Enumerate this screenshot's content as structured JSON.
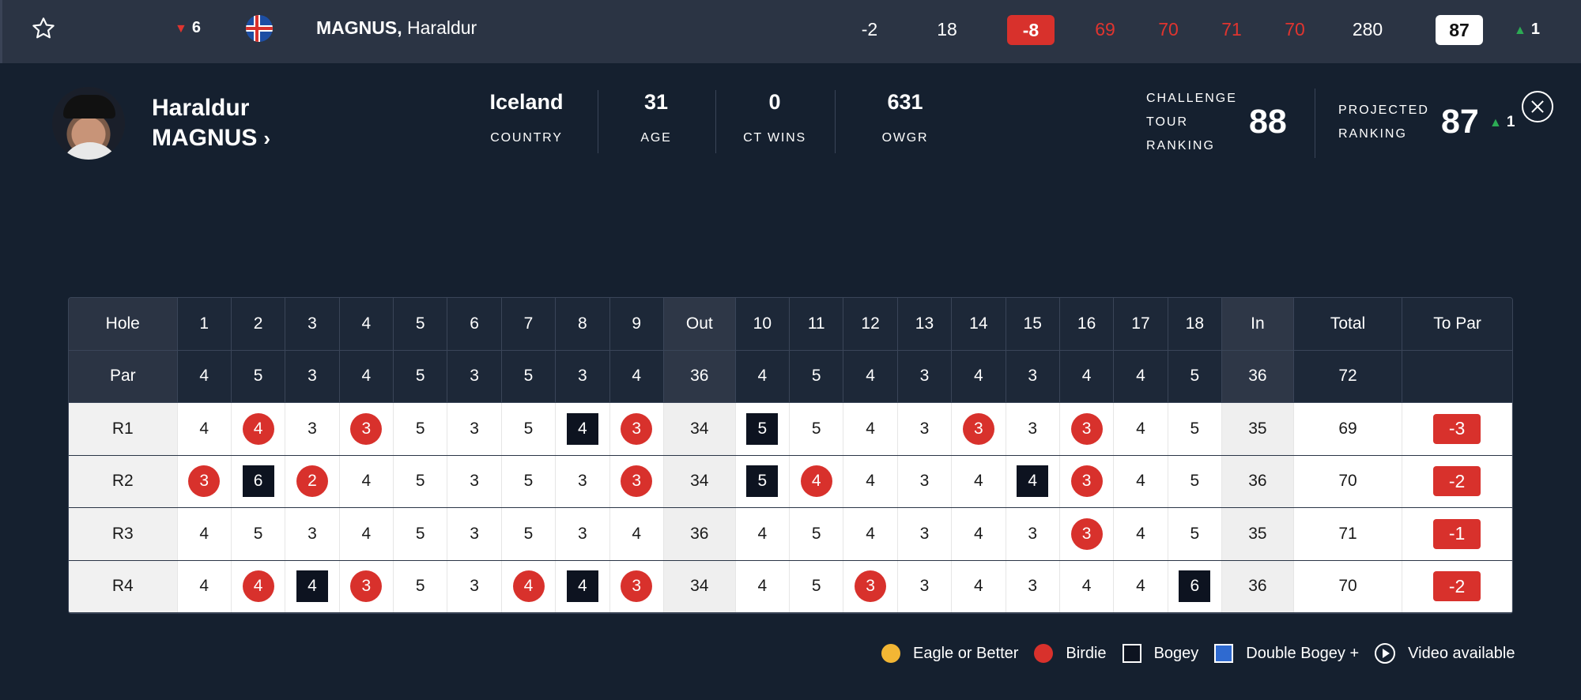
{
  "top_row": {
    "position_change": "6",
    "last_name": "MAGNUS,",
    "first_name": "Haraldur",
    "cells": [
      {
        "label": "-2",
        "red": false
      },
      {
        "label": "18",
        "red": false
      }
    ],
    "position": "-8",
    "rounds": [
      "69",
      "70",
      "71",
      "70"
    ],
    "total": "280",
    "projected": "87",
    "projected_change": "1"
  },
  "profile": {
    "first_name": "Haraldur",
    "last_name": "MAGNUS",
    "country": "Iceland",
    "country_label": "COUNTRY",
    "age": "31",
    "age_label": "AGE",
    "ct_wins": "0",
    "ct_wins_label": "CT WINS",
    "owgr": "631",
    "owgr_label": "OWGR",
    "ranking_label_1": "CHALLENGE",
    "ranking_label_2": "TOUR",
    "ranking_label_3": "RANKING",
    "ranking_value": "88",
    "projected_label_1": "PROJECTED",
    "projected_label_2": "RANKING",
    "projected_value": "87",
    "projected_change": "1"
  },
  "scorecard": {
    "hole_label": "Hole",
    "par_label": "Par",
    "holes": [
      "1",
      "2",
      "3",
      "4",
      "5",
      "6",
      "7",
      "8",
      "9",
      "Out",
      "10",
      "11",
      "12",
      "13",
      "14",
      "15",
      "16",
      "17",
      "18",
      "In",
      "Total",
      "To Par"
    ],
    "par": [
      "4",
      "5",
      "3",
      "4",
      "5",
      "3",
      "5",
      "3",
      "4",
      "36",
      "4",
      "5",
      "4",
      "3",
      "4",
      "3",
      "4",
      "4",
      "5",
      "36",
      "72",
      ""
    ],
    "rounds": [
      {
        "label": "R1",
        "scores": [
          "4",
          "4",
          "3",
          "3",
          "5",
          "3",
          "5",
          "4",
          "3",
          "34",
          "5",
          "5",
          "4",
          "3",
          "3",
          "3",
          "3",
          "4",
          "5",
          "35",
          "69",
          "-3"
        ],
        "types": [
          "",
          "b",
          "",
          "b",
          "",
          "",
          "",
          "o",
          "b",
          "",
          "o",
          "",
          "",
          "",
          "b",
          "",
          "b",
          "",
          "",
          "",
          "",
          ""
        ]
      },
      {
        "label": "R2",
        "scores": [
          "3",
          "6",
          "2",
          "4",
          "5",
          "3",
          "5",
          "3",
          "3",
          "34",
          "5",
          "4",
          "4",
          "3",
          "4",
          "4",
          "3",
          "4",
          "5",
          "36",
          "70",
          "-2"
        ],
        "types": [
          "b",
          "o",
          "b",
          "",
          "",
          "",
          "",
          "",
          "b",
          "",
          "o",
          "b",
          "",
          "",
          "",
          "o",
          "b",
          "",
          "",
          "",
          "",
          ""
        ]
      },
      {
        "label": "R3",
        "scores": [
          "4",
          "5",
          "3",
          "4",
          "5",
          "3",
          "5",
          "3",
          "4",
          "36",
          "4",
          "5",
          "4",
          "3",
          "4",
          "3",
          "3",
          "4",
          "5",
          "35",
          "71",
          "-1"
        ],
        "types": [
          "",
          "",
          "",
          "",
          "",
          "",
          "",
          "",
          "",
          "",
          "",
          "",
          "",
          "",
          "",
          "",
          "b",
          "",
          "",
          "",
          "",
          ""
        ]
      },
      {
        "label": "R4",
        "scores": [
          "4",
          "4",
          "4",
          "3",
          "5",
          "3",
          "4",
          "4",
          "3",
          "34",
          "4",
          "5",
          "3",
          "3",
          "4",
          "3",
          "4",
          "4",
          "6",
          "36",
          "70",
          "-2"
        ],
        "types": [
          "",
          "b",
          "o",
          "b",
          "",
          "",
          "b",
          "o",
          "b",
          "",
          "",
          "",
          "b",
          "",
          "",
          "",
          "",
          "",
          "o",
          "",
          "",
          ""
        ]
      }
    ]
  },
  "legend": {
    "eagle": "Eagle or Better",
    "birdie": "Birdie",
    "bogey": "Bogey",
    "double": "Double Bogey +",
    "video": "Video available"
  },
  "colors": {
    "background": "#15202f",
    "top_bar": "#2b3444",
    "birdie": "#d8312c",
    "bogey": "#0d1320",
    "eagle": "#f2b634",
    "double_bogey": "#2f6ad0",
    "up": "#2cab54"
  },
  "icons": [
    "star-icon",
    "iceland-flag-icon",
    "chevron-right-icon",
    "close-icon",
    "play-icon"
  ]
}
